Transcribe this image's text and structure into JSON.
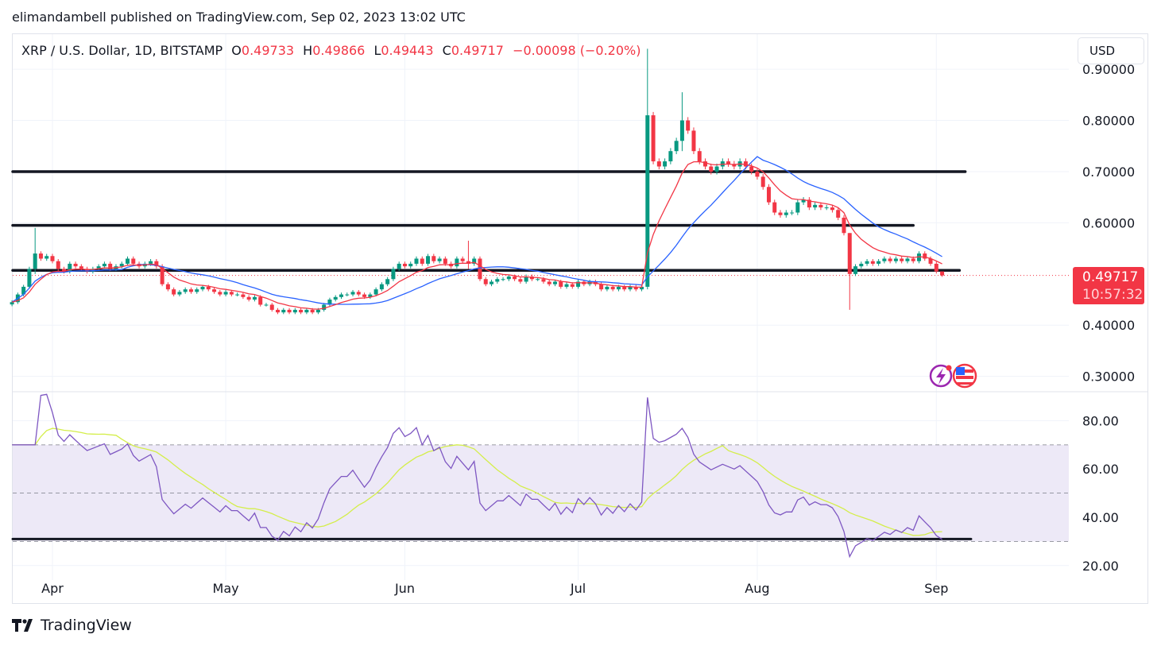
{
  "publisher_line": "elimandambell published on TradingView.com, Sep 02, 2023 13:02 UTC",
  "legend": {
    "symbol": "XRP / U.S. Dollar, 1D, BITSTAMP",
    "o_label": "O",
    "o": "0.49733",
    "h_label": "H",
    "h": "0.49866",
    "l_label": "L",
    "l": "0.49443",
    "c_label": "C",
    "c": "0.49717",
    "change": "−0.00098 (−0.20%)"
  },
  "currency_button": "USD",
  "last_price": {
    "price": "0.49717",
    "countdown": "10:57:32"
  },
  "brand": "TradingView",
  "colors": {
    "up": "#089981",
    "down": "#f23645",
    "fast_ma": "#f23645",
    "slow_ma": "#2962ff",
    "rsi": "#7e57c2",
    "rsi_ma": "#d4ee4a",
    "levels": "#131722",
    "rsi_band": "#ede9f7"
  },
  "icons": [
    "lightning-event-icon",
    "us-flag-event-icon"
  ],
  "chart_data": [
    {
      "type": "candlestick",
      "title": "",
      "ylim": [
        0.27,
        0.97
      ],
      "y_ticks": [
        "0.90000",
        "0.80000",
        "0.70000",
        "0.60000",
        "0.40000",
        "0.30000"
      ],
      "x_ticks": [
        {
          "label": "Apr",
          "date": "2023-04-01"
        },
        {
          "label": "May",
          "date": "2023-05-01"
        },
        {
          "label": "Jun",
          "date": "2023-06-01"
        },
        {
          "label": "Jul",
          "date": "2023-07-01"
        },
        {
          "label": "Aug",
          "date": "2023-08-01"
        },
        {
          "label": "Sep",
          "date": "2023-09-01"
        }
      ],
      "months": [
        {
          "month": "2023-03",
          "first_day": 25,
          "close": [
            0.445,
            0.46,
            0.475,
            0.51,
            0.54,
            0.53,
            0.535
          ]
        },
        {
          "month": "2023-04",
          "first_day": 1,
          "close": [
            0.525,
            0.51,
            0.505,
            0.52,
            0.515,
            0.51,
            0.505,
            0.51,
            0.515,
            0.52,
            0.51,
            0.515,
            0.52,
            0.53,
            0.52,
            0.515,
            0.52,
            0.525,
            0.515,
            0.48,
            0.47,
            0.46,
            0.465,
            0.47,
            0.465,
            0.47,
            0.475,
            0.47,
            0.465,
            0.46
          ]
        },
        {
          "month": "2023-05",
          "first_day": 1,
          "close": [
            0.465,
            0.46,
            0.46,
            0.455,
            0.45,
            0.455,
            0.44,
            0.44,
            0.43,
            0.425,
            0.43,
            0.425,
            0.43,
            0.425,
            0.43,
            0.425,
            0.43,
            0.44,
            0.45,
            0.455,
            0.46,
            0.46,
            0.465,
            0.46,
            0.455,
            0.46,
            0.47,
            0.48,
            0.49,
            0.51,
            0.52
          ]
        },
        {
          "month": "2023-06",
          "first_day": 1,
          "close": [
            0.515,
            0.52,
            0.53,
            0.52,
            0.535,
            0.525,
            0.53,
            0.52,
            0.515,
            0.53,
            0.525,
            0.52,
            0.53,
            0.49,
            0.48,
            0.485,
            0.49,
            0.49,
            0.495,
            0.49,
            0.485,
            0.495,
            0.49,
            0.49,
            0.485,
            0.48,
            0.485,
            0.475,
            0.48,
            0.475
          ]
        },
        {
          "month": "2023-07",
          "first_day": 1,
          "close": [
            0.485,
            0.48,
            0.485,
            0.48,
            0.47,
            0.475,
            0.47,
            0.475,
            0.47,
            0.475,
            0.47,
            0.475,
            0.81,
            0.72,
            0.71,
            0.72,
            0.74,
            0.76,
            0.8,
            0.78,
            0.74,
            0.72,
            0.71,
            0.7,
            0.71,
            0.72,
            0.715,
            0.71,
            0.72,
            0.71,
            0.7
          ]
        },
        {
          "month": "2023-08",
          "first_day": 1,
          "close": [
            0.69,
            0.67,
            0.64,
            0.62,
            0.615,
            0.62,
            0.62,
            0.64,
            0.645,
            0.63,
            0.635,
            0.63,
            0.63,
            0.625,
            0.61,
            0.58,
            0.5,
            0.515,
            0.52,
            0.525,
            0.52,
            0.525,
            0.53,
            0.525,
            0.53,
            0.525,
            0.53,
            0.525,
            0.54,
            0.53,
            0.52
          ]
        },
        {
          "month": "2023-09",
          "first_day": 1,
          "close": [
            0.505,
            0.49717
          ]
        }
      ],
      "notable_wicks": {
        "2023-03-29": [
          0.59,
          0.5
        ],
        "2023-06-12": [
          0.565,
          0.51
        ],
        "2023-07-13": [
          0.94,
          0.47
        ],
        "2023-07-19": [
          0.855,
          0.74
        ],
        "2023-08-17": [
          0.58,
          0.43
        ],
        "2023-09-02": [
          0.49866,
          0.49443
        ]
      },
      "horizontal_levels": [
        {
          "price": 0.7,
          "until": "2023-09-06"
        },
        {
          "price": 0.595,
          "until": "2023-08-28"
        },
        {
          "price": 0.507,
          "until": "2023-09-05"
        }
      ],
      "current_price_line": 0.49717
    },
    {
      "type": "line",
      "title": "",
      "ylim": [
        14,
        92
      ],
      "y_ticks": [
        "80.00",
        "60.00",
        "40.00",
        "20.00"
      ],
      "band": [
        30,
        70
      ],
      "midline": 50,
      "horizontal_levels": [
        {
          "value": 31,
          "until": "2023-09-07"
        }
      ]
    }
  ]
}
